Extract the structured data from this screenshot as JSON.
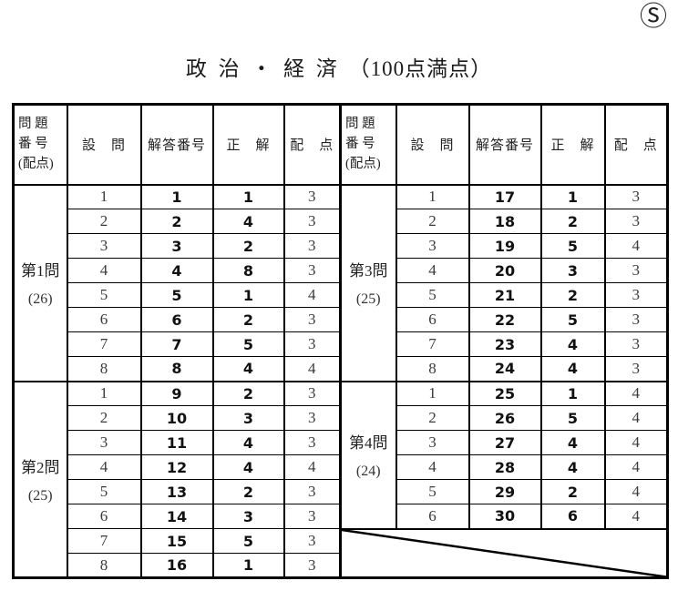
{
  "page": {
    "corner_mark": "Ⓢ",
    "title": "政 治 ・ 経 済 （100点満点）"
  },
  "header": {
    "question_group": "問 題\n番 号\n(配点)",
    "sub_question": "設　問",
    "answer_number": "解答番号",
    "correct_answer": "正　解",
    "points": "配　点"
  },
  "sections": [
    {
      "name": "第1問",
      "points": "(26)",
      "rows": [
        {
          "q": "1",
          "ans_no": "1",
          "correct": "1",
          "pts": "3"
        },
        {
          "q": "2",
          "ans_no": "2",
          "correct": "4",
          "pts": "3"
        },
        {
          "q": "3",
          "ans_no": "3",
          "correct": "2",
          "pts": "3"
        },
        {
          "q": "4",
          "ans_no": "4",
          "correct": "8",
          "pts": "3"
        },
        {
          "q": "5",
          "ans_no": "5",
          "correct": "1",
          "pts": "4"
        },
        {
          "q": "6",
          "ans_no": "6",
          "correct": "2",
          "pts": "3"
        },
        {
          "q": "7",
          "ans_no": "7",
          "correct": "5",
          "pts": "3"
        },
        {
          "q": "8",
          "ans_no": "8",
          "correct": "4",
          "pts": "4"
        }
      ]
    },
    {
      "name": "第2問",
      "points": "(25)",
      "rows": [
        {
          "q": "1",
          "ans_no": "9",
          "correct": "2",
          "pts": "3"
        },
        {
          "q": "2",
          "ans_no": "10",
          "correct": "3",
          "pts": "3"
        },
        {
          "q": "3",
          "ans_no": "11",
          "correct": "4",
          "pts": "3"
        },
        {
          "q": "4",
          "ans_no": "12",
          "correct": "4",
          "pts": "4"
        },
        {
          "q": "5",
          "ans_no": "13",
          "correct": "2",
          "pts": "3"
        },
        {
          "q": "6",
          "ans_no": "14",
          "correct": "3",
          "pts": "3"
        },
        {
          "q": "7",
          "ans_no": "15",
          "correct": "5",
          "pts": "3"
        },
        {
          "q": "8",
          "ans_no": "16",
          "correct": "1",
          "pts": "3"
        }
      ]
    },
    {
      "name": "第3問",
      "points": "(25)",
      "rows": [
        {
          "q": "1",
          "ans_no": "17",
          "correct": "1",
          "pts": "3"
        },
        {
          "q": "2",
          "ans_no": "18",
          "correct": "2",
          "pts": "3"
        },
        {
          "q": "3",
          "ans_no": "19",
          "correct": "5",
          "pts": "4"
        },
        {
          "q": "4",
          "ans_no": "20",
          "correct": "3",
          "pts": "3"
        },
        {
          "q": "5",
          "ans_no": "21",
          "correct": "2",
          "pts": "3"
        },
        {
          "q": "6",
          "ans_no": "22",
          "correct": "5",
          "pts": "3"
        },
        {
          "q": "7",
          "ans_no": "23",
          "correct": "4",
          "pts": "3"
        },
        {
          "q": "8",
          "ans_no": "24",
          "correct": "4",
          "pts": "3"
        }
      ]
    },
    {
      "name": "第4問",
      "points": "(24)",
      "rows": [
        {
          "q": "1",
          "ans_no": "25",
          "correct": "1",
          "pts": "4"
        },
        {
          "q": "2",
          "ans_no": "26",
          "correct": "5",
          "pts": "4"
        },
        {
          "q": "3",
          "ans_no": "27",
          "correct": "4",
          "pts": "4"
        },
        {
          "q": "4",
          "ans_no": "28",
          "correct": "4",
          "pts": "4"
        },
        {
          "q": "5",
          "ans_no": "29",
          "correct": "2",
          "pts": "4"
        },
        {
          "q": "6",
          "ans_no": "30",
          "correct": "6",
          "pts": "4"
        }
      ]
    }
  ]
}
